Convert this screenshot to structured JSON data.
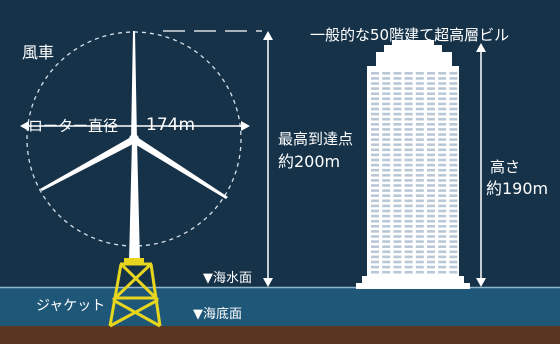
{
  "labels": {
    "title": "一般的な50階建て超高層ビル",
    "windmill": "風車",
    "rotor_label": "ローター直径",
    "rotor_diameter": "174m",
    "max_height_label": "最高到達点",
    "max_height_value": "約200m",
    "building_height_label": "高さ",
    "building_height_value": "約190m",
    "sea_level": "▼海水面",
    "seabed": "▼海底面",
    "jacket": "ジャケット"
  },
  "colors": {
    "background": "#163249",
    "sea": "#1f5778",
    "seabed": "#5a3620",
    "text": "#ffffff",
    "jacket": "#e8d51e",
    "building": "#ffffff",
    "building_windows": "#b9c8d6"
  }
}
